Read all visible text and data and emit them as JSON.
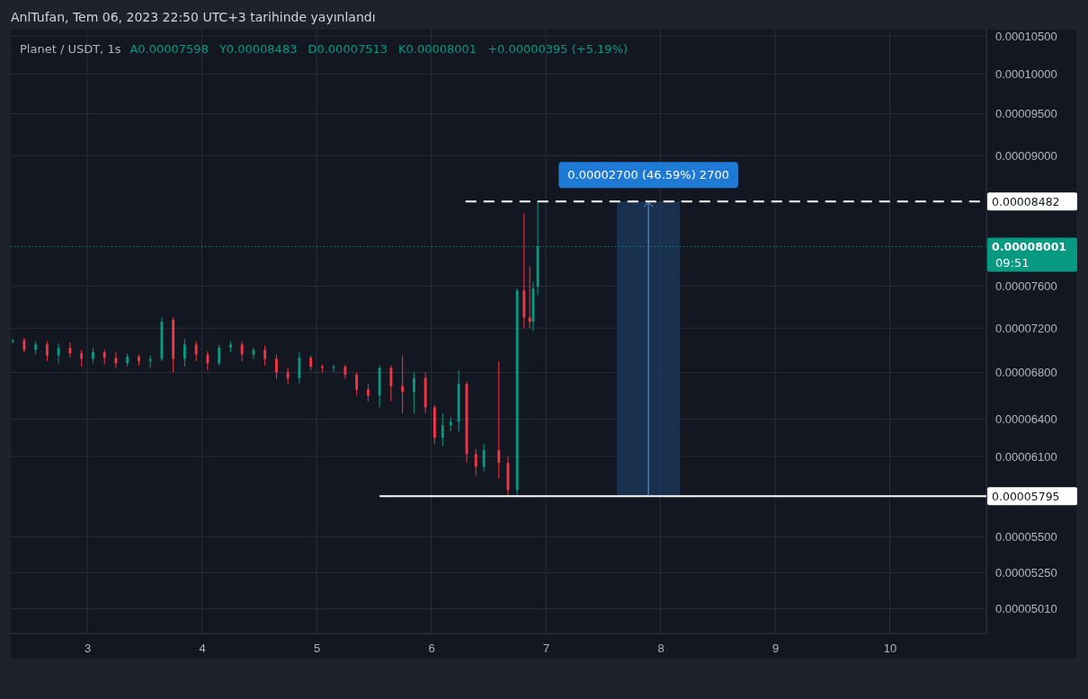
{
  "chart_data": {
    "type": "candlestick",
    "title": "AnlTufan, Tem 06, 2023 22:50 UTC+3 tarihinde yayınlandı",
    "subtitle": "Planet / USDT, 1s",
    "annotations": [
      "A0.00007598",
      "Y0.00008483",
      "D0.00007513",
      "K0.00008001",
      "+0.00000395 (+5.19%)",
      "09:51",
      "0.00002700 (46.59%) 2700"
    ],
    "x": [
      2.35,
      2.45,
      2.55,
      2.65,
      2.75,
      2.85,
      2.95,
      3.05,
      3.15,
      3.25,
      3.35,
      3.45,
      3.55,
      3.65,
      3.75,
      3.85,
      3.95,
      4.05,
      4.15,
      4.25,
      4.35,
      4.45,
      4.55,
      4.65,
      4.75,
      4.85,
      4.95,
      5.05,
      5.15,
      5.25,
      5.35,
      5.45,
      5.55,
      5.65,
      5.75,
      5.85,
      5.95,
      6.03,
      6.1,
      6.17,
      6.24,
      6.31,
      6.39,
      6.46,
      6.59,
      6.67,
      6.75,
      6.81,
      6.86,
      6.89,
      6.93
    ],
    "ohlc": [
      [
        7.08e-05,
        7.1e-05,
        7.06e-05,
        7.09e-05
      ],
      [
        7.09e-05,
        7.11e-05,
        6.98e-05,
        7e-05
      ],
      [
        7e-05,
        7.08e-05,
        6.96e-05,
        7.05e-05
      ],
      [
        7.05e-05,
        7.08e-05,
        6.9e-05,
        6.95e-05
      ],
      [
        6.95e-05,
        7.06e-05,
        6.88e-05,
        7.02e-05
      ],
      [
        7.02e-05,
        7.07e-05,
        6.93e-05,
        6.97e-05
      ],
      [
        6.97e-05,
        7e-05,
        6.85e-05,
        6.92e-05
      ],
      [
        6.92e-05,
        7.02e-05,
        6.88e-05,
        6.98e-05
      ],
      [
        6.98e-05,
        7e-05,
        6.87e-05,
        6.93e-05
      ],
      [
        6.93e-05,
        6.98e-05,
        6.84e-05,
        6.88e-05
      ],
      [
        6.88e-05,
        6.97e-05,
        6.85e-05,
        6.94e-05
      ],
      [
        6.94e-05,
        6.96e-05,
        6.86e-05,
        6.9e-05
      ],
      [
        6.9e-05,
        6.95e-05,
        6.84e-05,
        6.92e-05
      ],
      [
        6.92e-05,
        7.3e-05,
        6.9e-05,
        7.26e-05
      ],
      [
        7.28e-05,
        7.3e-05,
        6.8e-05,
        6.92e-05
      ],
      [
        6.92e-05,
        7.1e-05,
        6.85e-05,
        7.05e-05
      ],
      [
        7.05e-05,
        7.08e-05,
        6.9e-05,
        6.96e-05
      ],
      [
        6.96e-05,
        6.99e-05,
        6.82e-05,
        6.88e-05
      ],
      [
        6.88e-05,
        7.05e-05,
        6.86e-05,
        7.02e-05
      ],
      [
        7.02e-05,
        7.08e-05,
        6.98e-05,
        7.05e-05
      ],
      [
        7.05e-05,
        7.08e-05,
        6.9e-05,
        6.96e-05
      ],
      [
        6.96e-05,
        7.02e-05,
        6.92e-05,
        7e-05
      ],
      [
        7e-05,
        7.04e-05,
        6.86e-05,
        6.92e-05
      ],
      [
        6.92e-05,
        6.96e-05,
        6.74e-05,
        6.8e-05
      ],
      [
        6.8e-05,
        6.84e-05,
        6.7e-05,
        6.75e-05
      ],
      [
        6.75e-05,
        6.98e-05,
        6.7e-05,
        6.93e-05
      ],
      [
        6.93e-05,
        6.95e-05,
        6.82e-05,
        6.85e-05
      ],
      [
        6.85e-05,
        6.87e-05,
        6.8e-05,
        6.84e-05
      ],
      [
        6.84e-05,
        6.87e-05,
        6.8e-05,
        6.85e-05
      ],
      [
        6.85e-05,
        6.87e-05,
        6.74e-05,
        6.78e-05
      ],
      [
        6.78e-05,
        6.8e-05,
        6.6e-05,
        6.65e-05
      ],
      [
        6.65e-05,
        6.7e-05,
        6.55e-05,
        6.6e-05
      ],
      [
        6.6e-05,
        6.86e-05,
        6.5e-05,
        6.84e-05
      ],
      [
        6.84e-05,
        6.86e-05,
        6.55e-05,
        6.68e-05
      ],
      [
        6.68e-05,
        6.95e-05,
        6.45e-05,
        6.63e-05
      ],
      [
        6.63e-05,
        6.8e-05,
        6.45e-05,
        6.75e-05
      ],
      [
        6.75e-05,
        6.8e-05,
        6.45e-05,
        6.5e-05
      ],
      [
        6.5e-05,
        6.52e-05,
        6.2e-05,
        6.25e-05
      ],
      [
        6.25e-05,
        6.45e-05,
        6.18e-05,
        6.35e-05
      ],
      [
        6.35e-05,
        6.42e-05,
        6.3e-05,
        6.38e-05
      ],
      [
        6.38e-05,
        6.82e-05,
        6.3e-05,
        6.7e-05
      ],
      [
        6.7e-05,
        6.72e-05,
        6.05e-05,
        6.12e-05
      ],
      [
        6.12e-05,
        6.16e-05,
        5.95e-05,
        6.02e-05
      ],
      [
        6.02e-05,
        6.2e-05,
        5.98e-05,
        6.15e-05
      ],
      [
        6.15e-05,
        6.9e-05,
        5.93e-05,
        6.05e-05
      ],
      [
        6.05e-05,
        6.1e-05,
        5.795e-05,
        5.84e-05
      ],
      [
        5.84e-05,
        7.58e-05,
        5.8e-05,
        7.56e-05
      ],
      [
        7.56e-05,
        8.35e-05,
        7.2e-05,
        7.3e-05
      ],
      [
        7.3e-05,
        7.8e-05,
        7.2e-05,
        7.26e-05
      ],
      [
        7.26e-05,
        7.65e-05,
        7.17e-05,
        7.58e-05
      ],
      [
        7.598e-05,
        8.483e-05,
        7.513e-05,
        8.001e-05
      ]
    ],
    "colors": [
      "#089981",
      "#f23645",
      "#089981",
      "#f23645",
      "#089981",
      "#f23645",
      "#f23645",
      "#089981",
      "#f23645",
      "#f23645",
      "#089981",
      "#f23645",
      "#089981",
      "#089981",
      "#f23645",
      "#089981",
      "#f23645",
      "#f23645",
      "#089981",
      "#089981",
      "#f23645",
      "#089981",
      "#f23645",
      "#f23645",
      "#f23645",
      "#089981",
      "#f23645",
      "#f23645",
      "#089981",
      "#f23645",
      "#f23645",
      "#f23645",
      "#089981",
      "#f23645",
      "#f23645",
      "#089981",
      "#f23645",
      "#f23645",
      "#089981",
      "#089981",
      "#089981",
      "#f23645",
      "#f23645",
      "#089981",
      "#f23645",
      "#f23645",
      "#089981",
      "#f23645",
      "#f23645",
      "#089981",
      "#089981"
    ],
    "xlim": [
      2.333,
      10.843
    ],
    "xticks": [
      3,
      4,
      5,
      6,
      7,
      8,
      9,
      10
    ],
    "ylim": [
      4.853e-05,
      0.0001059
    ],
    "log": "y",
    "yticks": [
      {
        "value": 5.01e-05,
        "label": "0.00005010"
      },
      {
        "value": 5.25e-05,
        "label": "0.00005250"
      },
      {
        "value": 5.5e-05,
        "label": "0.00005500"
      },
      {
        "value": 6.1e-05,
        "label": "0.00006100"
      },
      {
        "value": 6.4e-05,
        "label": "0.00006400"
      },
      {
        "value": 6.8e-05,
        "label": "0.00006800"
      },
      {
        "value": 7.2e-05,
        "label": "0.00007200"
      },
      {
        "value": 7.6e-05,
        "label": "0.00007600"
      },
      {
        "value": 9e-05,
        "label": "0.00009000"
      },
      {
        "value": 9.5e-05,
        "label": "0.00009500"
      },
      {
        "value": 0.0001,
        "label": "0.00010000"
      },
      {
        "value": 0.000105,
        "label": "0.00010500"
      }
    ],
    "grid": true,
    "ref_lines": [
      {
        "axis": "y",
        "value": 8.482e-05,
        "label": "0.00008482",
        "color": "#ffffff",
        "line_style": "dashed"
      },
      {
        "axis": "y",
        "value": 5.795e-05,
        "label": "0.00005795",
        "color": "#ffffff",
        "line_style": "solid"
      },
      {
        "axis": "y",
        "value": 8.001e-05,
        "label": "0.00008001",
        "color": "#089981",
        "line_style": "dotted"
      }
    ],
    "bands": [
      {
        "axis": "x",
        "from": 7.62,
        "to": 8.17,
        "color": "#1e3a5f"
      }
    ]
  }
}
